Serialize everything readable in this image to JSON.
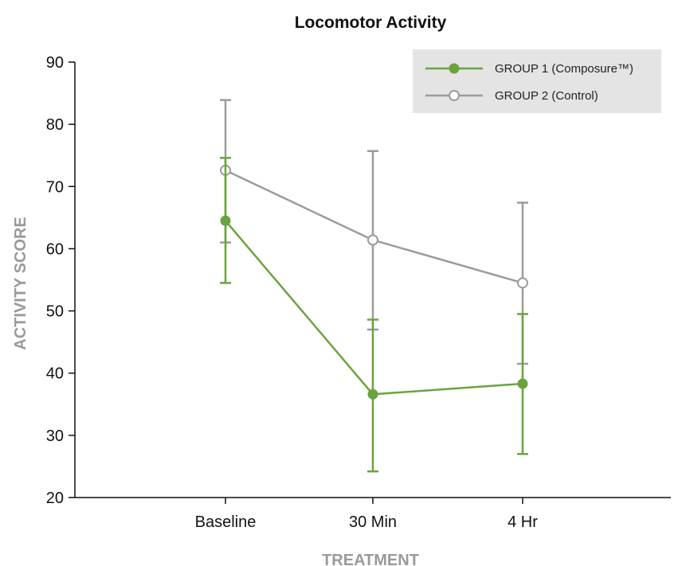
{
  "chart_data": {
    "type": "line",
    "title": "Locomotor Activity",
    "xlabel": "TREATMENT",
    "ylabel": "ACTIVITY SCORE",
    "categories": [
      "Baseline",
      "30 Min",
      "4 Hr"
    ],
    "ylim": [
      20,
      90
    ],
    "yticks": [
      "20",
      "30",
      "40",
      "50",
      "60",
      "70",
      "80",
      "90"
    ],
    "legend_position": "top-right",
    "grid": false,
    "series": [
      {
        "name": "GROUP 1 (Composure™)",
        "color": "#6aa33f",
        "marker": "filled-circle",
        "values": [
          64.5,
          36.6,
          38.3
        ],
        "error_low": [
          54.5,
          24.2,
          27.0
        ],
        "error_high": [
          74.6,
          48.6,
          49.5
        ]
      },
      {
        "name": "GROUP 2 (Control)",
        "color": "#9b9b9b",
        "marker": "open-circle",
        "values": [
          72.6,
          61.4,
          54.5
        ],
        "error_low": [
          61.0,
          47.0,
          41.5
        ],
        "error_high": [
          83.9,
          75.7,
          67.4
        ]
      }
    ]
  }
}
